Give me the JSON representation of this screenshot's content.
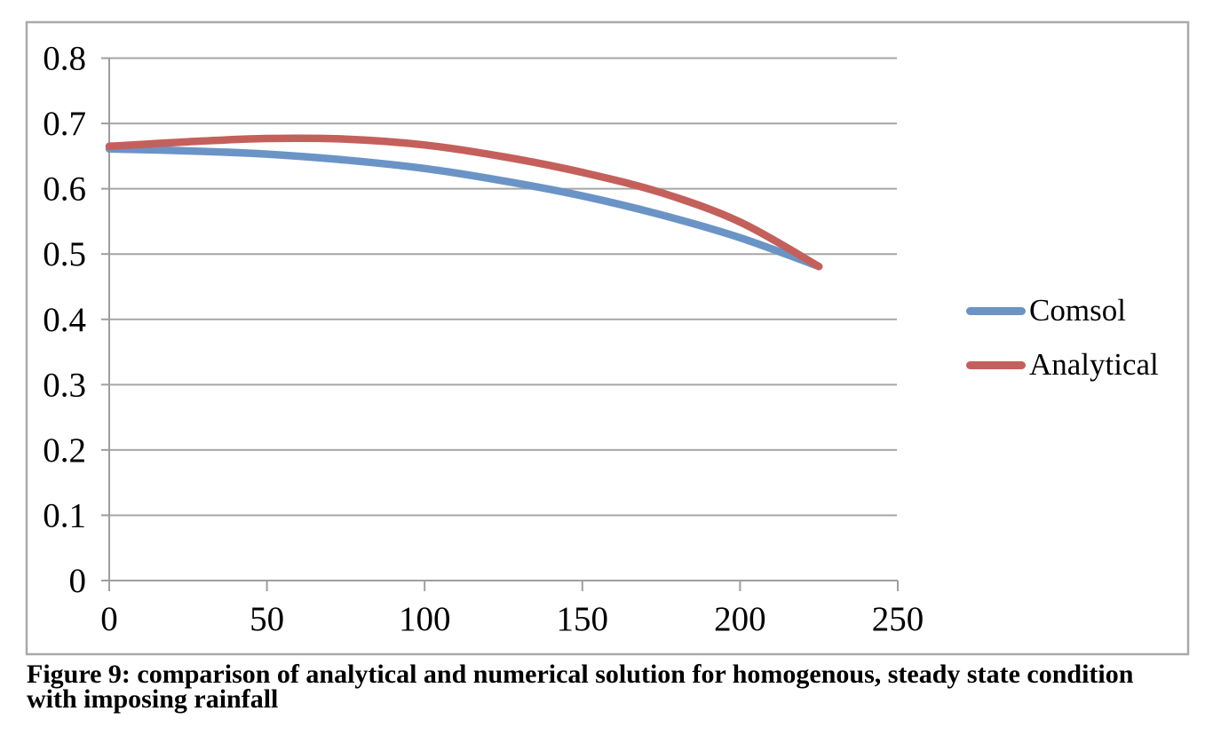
{
  "chart_data": {
    "type": "line",
    "title": "",
    "xlabel": "",
    "ylabel": "",
    "x": [
      0,
      25,
      50,
      75,
      100,
      125,
      150,
      175,
      200,
      225
    ],
    "series": [
      {
        "name": "Comsol",
        "color": "#6B94C6",
        "values": [
          0.661,
          0.658,
          0.653,
          0.644,
          0.631,
          0.612,
          0.589,
          0.56,
          0.525,
          0.481
        ]
      },
      {
        "name": "Analytical",
        "color": "#C4605B",
        "values": [
          0.665,
          0.672,
          0.677,
          0.676,
          0.667,
          0.649,
          0.625,
          0.594,
          0.549,
          0.481
        ]
      }
    ],
    "xlim": [
      0,
      250
    ],
    "ylim": [
      0,
      0.8
    ],
    "x_ticks": [
      0,
      50,
      100,
      150,
      200,
      250
    ],
    "y_ticks": [
      0,
      0.1,
      0.2,
      0.3,
      0.4,
      0.5,
      0.6,
      0.7,
      0.8
    ],
    "grid": "horizontal",
    "legend_position": "right-middle",
    "gridline_color": "#A6A6A6",
    "axis_color": "#9E9E9E",
    "frame_color": "#A9A9A9",
    "text_color": "#000000"
  },
  "caption": {
    "lines": [
      "Figure 9: comparison of analytical and numerical solution for homogenous, steady state condition",
      "with imposing rainfall"
    ],
    "text": "Figure 9: comparison of analytical and numerical solution for homogenous, steady state condition with imposing rainfall"
  }
}
